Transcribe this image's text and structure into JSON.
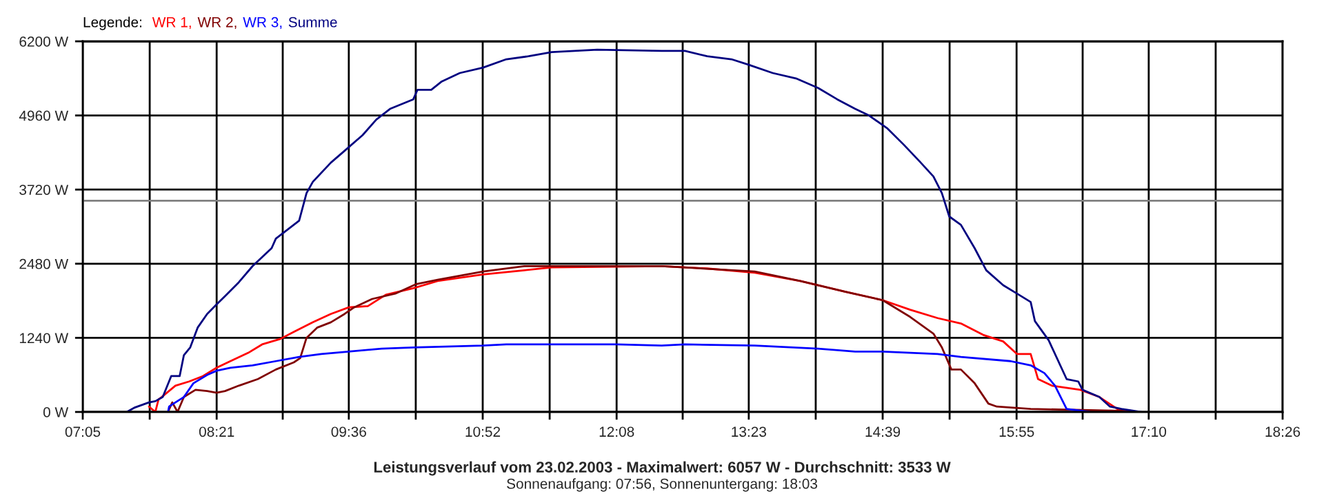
{
  "chart_data": {
    "type": "line",
    "title": "Leistungsverlauf vom 23.02.2003 - Maximalwert: 6057 W - Durchschnitt: 3533 W",
    "subtitle": "Sonnenaufgang: 07:56, Sonnenuntergang: 18:03",
    "legend_title": "Legende:",
    "legend": "top left",
    "grid": true,
    "series": [
      {
        "name": "WR 1,",
        "color": "#ff0000",
        "x": [
          7.71,
          7.77,
          7.8,
          7.83,
          7.96,
          8.09,
          8.22,
          8.35,
          8.48,
          8.65,
          8.78,
          8.95,
          9.08,
          9.26,
          9.43,
          9.6,
          9.78,
          9.95,
          10.21,
          10.44,
          10.87,
          11.26,
          11.52,
          12.56,
          12.99,
          13.44,
          13.87,
          14.3,
          14.65,
          14.91,
          15.17,
          15.39,
          15.6,
          15.79,
          15.92,
          16.05,
          16.12,
          16.25,
          16.52,
          16.7,
          16.87,
          17.0,
          17.04
        ],
        "values": [
          90,
          0,
          210,
          250,
          440,
          510,
          600,
          740,
          850,
          990,
          1130,
          1220,
          1340,
          1500,
          1640,
          1750,
          1770,
          1960,
          2070,
          2190,
          2300,
          2370,
          2420,
          2440,
          2400,
          2330,
          2190,
          2010,
          1870,
          1710,
          1570,
          1480,
          1290,
          1180,
          970,
          970,
          550,
          440,
          370,
          250,
          50,
          20,
          0
        ]
      },
      {
        "name": "WR 2,",
        "color": "#800000",
        "x": [
          7.89,
          7.93,
          7.98,
          8.04,
          8.15,
          8.26,
          8.35,
          8.43,
          8.56,
          8.74,
          8.91,
          9.08,
          9.14,
          9.2,
          9.3,
          9.43,
          9.56,
          9.65,
          9.82,
          10.04,
          10.24,
          10.44,
          10.87,
          11.26,
          12.56,
          13.44,
          13.87,
          14.3,
          14.65,
          14.91,
          15.13,
          15.21,
          15.3,
          15.39,
          15.52,
          15.65,
          15.73,
          16.05,
          16.91,
          17.04
        ],
        "values": [
          0,
          160,
          0,
          250,
          370,
          350,
          320,
          350,
          440,
          550,
          710,
          830,
          900,
          1240,
          1410,
          1500,
          1640,
          1750,
          1890,
          1980,
          2140,
          2210,
          2350,
          2440,
          2440,
          2350,
          2190,
          2010,
          1870,
          1590,
          1310,
          1080,
          710,
          710,
          480,
          140,
          90,
          50,
          20,
          0
        ]
      },
      {
        "name": "WR 3,",
        "color": "#0000ff",
        "x": [
          7.89,
          7.9,
          7.96,
          8.04,
          8.13,
          8.26,
          8.35,
          8.48,
          8.69,
          8.91,
          9.13,
          9.34,
          9.6,
          9.91,
          10.21,
          10.87,
          11.09,
          11.52,
          12.13,
          12.56,
          12.78,
          13.44,
          14.04,
          14.39,
          14.65,
          15.17,
          15.39,
          15.86,
          16.05,
          16.18,
          16.28,
          16.39,
          16.61
        ],
        "values": [
          0,
          90,
          160,
          250,
          480,
          620,
          690,
          740,
          780,
          850,
          920,
          970,
          1010,
          1060,
          1080,
          1110,
          1130,
          1130,
          1130,
          1110,
          1130,
          1110,
          1060,
          1010,
          1010,
          970,
          920,
          850,
          780,
          650,
          440,
          50,
          0
        ]
      },
      {
        "name": "Summe",
        "color": "#000080",
        "x": [
          7.5,
          7.57,
          7.71,
          7.77,
          7.84,
          7.92,
          8.0,
          8.04,
          8.1,
          8.17,
          8.26,
          8.35,
          8.43,
          8.56,
          8.69,
          8.87,
          8.91,
          9.13,
          9.2,
          9.26,
          9.43,
          9.6,
          9.73,
          9.86,
          9.99,
          10.21,
          10.25,
          10.38,
          10.48,
          10.65,
          10.87,
          11.09,
          11.3,
          11.52,
          11.95,
          12.56,
          12.78,
          12.99,
          13.22,
          13.38,
          13.61,
          13.83,
          14.04,
          14.22,
          14.39,
          14.52,
          14.69,
          14.85,
          15.0,
          15.13,
          15.21,
          15.28,
          15.39,
          15.52,
          15.63,
          15.79,
          15.92,
          16.05,
          16.09,
          16.22,
          16.39,
          16.5,
          16.54,
          16.7,
          16.8,
          16.91,
          17.1
        ],
        "values": [
          0,
          70,
          160,
          180,
          250,
          600,
          600,
          950,
          1080,
          1410,
          1640,
          1800,
          1940,
          2170,
          2440,
          2740,
          2900,
          3200,
          3660,
          3850,
          4170,
          4430,
          4630,
          4890,
          5070,
          5230,
          5390,
          5390,
          5530,
          5670,
          5760,
          5900,
          5950,
          6020,
          6060,
          6040,
          6040,
          5950,
          5900,
          5810,
          5670,
          5580,
          5420,
          5230,
          5070,
          4960,
          4750,
          4470,
          4190,
          3940,
          3660,
          3270,
          3130,
          2740,
          2370,
          2120,
          1980,
          1840,
          1520,
          1200,
          550,
          510,
          370,
          250,
          90,
          50,
          0
        ]
      }
    ],
    "ref_lines": [
      {
        "axis": "y",
        "value": 3533,
        "color": "#808080"
      }
    ],
    "xlim": [
      7.0833,
      18.4333
    ],
    "xticks": [
      {
        "value": 7.0833,
        "label": "07:05"
      },
      {
        "value": 7.7167,
        "label": null
      },
      {
        "value": 8.35,
        "label": "08:21"
      },
      {
        "value": 8.975,
        "label": null
      },
      {
        "value": 9.6,
        "label": "09:36"
      },
      {
        "value": 10.2333,
        "label": null
      },
      {
        "value": 10.8667,
        "label": "10:52"
      },
      {
        "value": 11.5,
        "label": null
      },
      {
        "value": 12.1333,
        "label": "12:08"
      },
      {
        "value": 12.7583,
        "label": null
      },
      {
        "value": 13.3833,
        "label": "13:23"
      },
      {
        "value": 14.0167,
        "label": null
      },
      {
        "value": 14.65,
        "label": "14:39"
      },
      {
        "value": 15.2833,
        "label": null
      },
      {
        "value": 15.9167,
        "label": "15:55"
      },
      {
        "value": 16.5417,
        "label": null
      },
      {
        "value": 17.1667,
        "label": "17:10"
      },
      {
        "value": 17.8,
        "label": null
      },
      {
        "value": 18.4333,
        "label": "18:26"
      }
    ],
    "ylim": [
      0,
      6200
    ],
    "yticks": [
      {
        "value": 0,
        "label": "0 W"
      },
      {
        "value": 1240,
        "label": "1240 W"
      },
      {
        "value": 2480,
        "label": "2480 W"
      },
      {
        "value": 3720,
        "label": "3720 W"
      },
      {
        "value": 4960,
        "label": "4960 W"
      },
      {
        "value": 6200,
        "label": "6200 W"
      }
    ]
  }
}
